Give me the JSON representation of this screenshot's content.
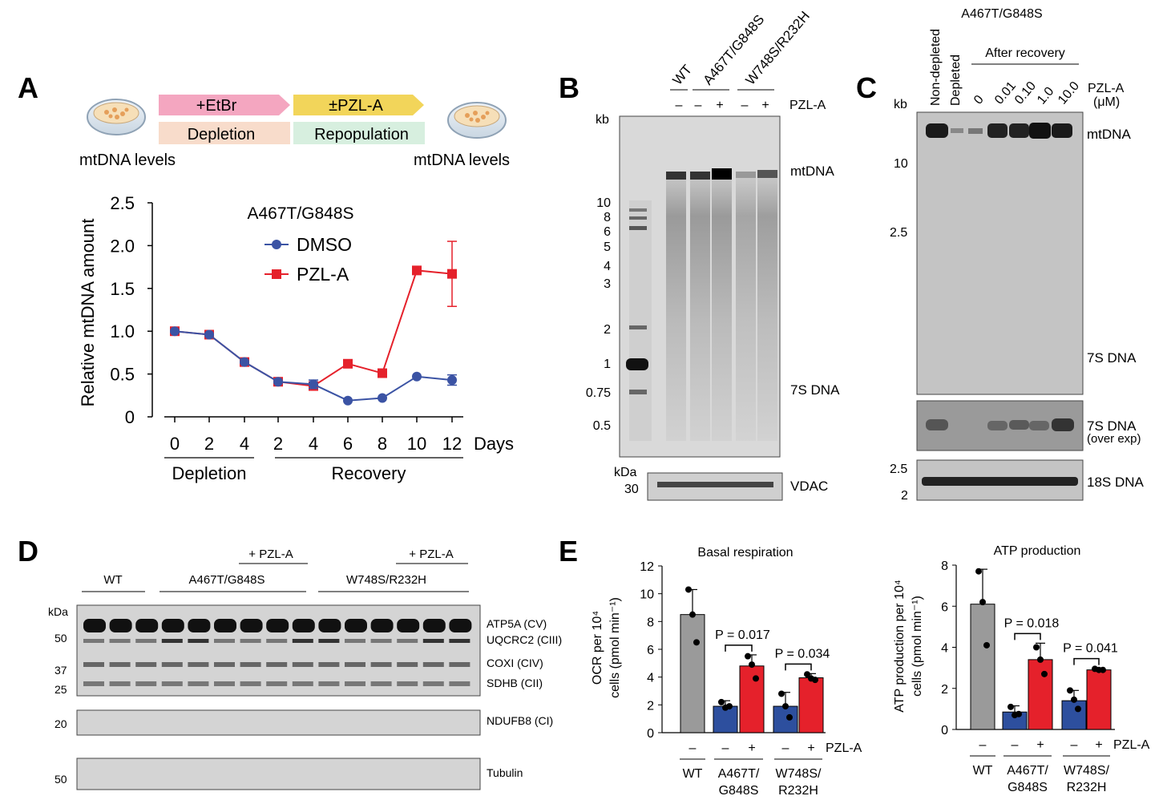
{
  "panels": {
    "A": {
      "letter": "A",
      "schematic": {
        "etbr": "+EtBr",
        "pzla": "±PZL-A",
        "depletion": "Depletion",
        "repopulation": "Repopulation",
        "mtdna_left": "mtDNA levels",
        "mtdna_right": "mtDNA levels",
        "colors": {
          "etbr_arrow": "#f4a6c0",
          "pzla_arrow": "#f2d55a",
          "depletion_box": "#f8dccb",
          "repop_box": "#d7efdf"
        }
      },
      "chart_title": "A467T/G848S",
      "ylabel": "Relative mtDNA amount",
      "xunit": "Days",
      "yticks": [
        "0",
        "0.5",
        "1.0",
        "1.5",
        "2.0",
        "2.5"
      ],
      "xticks": [
        "0",
        "2",
        "4",
        "2",
        "4",
        "6",
        "8",
        "10",
        "12"
      ],
      "group_labels": [
        "Depletion",
        "Recovery"
      ]
    },
    "B": {
      "letter": "B",
      "lanes": [
        "WT",
        "A467T/G848S",
        "W748S/R232H"
      ],
      "treatment_row": [
        "–",
        "–",
        "+",
        "–",
        "+"
      ],
      "treatment_label": "PZL-A",
      "kb_label": "kb",
      "ladder": [
        "10",
        "8",
        "6",
        "5",
        "4",
        "3",
        "2",
        "1",
        "0.75",
        "0.5"
      ],
      "bands": [
        "mtDNA",
        "7S DNA"
      ],
      "kda_label": "kDa",
      "kda_value": "30",
      "loading": "VDAC"
    },
    "C": {
      "letter": "C",
      "header": "A467T/G848S",
      "lanes": [
        "Non-depleted",
        "Depleted"
      ],
      "after_recovery": "After recovery",
      "doses": [
        "0",
        "0.01",
        "0.10",
        "1.0",
        "10.0"
      ],
      "dose_label": "PZL-A",
      "dose_unit": "(μM)",
      "kb_label": "kb",
      "ladder": [
        "10",
        "2.5"
      ],
      "bands": [
        "mtDNA",
        "7S DNA"
      ],
      "overexp_1": "7S DNA",
      "overexp_2": "(over exp)",
      "lower_ladder": [
        "2.5",
        "2"
      ],
      "loading": "18S DNA"
    },
    "D": {
      "letter": "D",
      "groups": [
        "WT",
        "A467T/G848S",
        "W748S/R232H"
      ],
      "pzl_labels": [
        "+ PZL-A",
        "+ PZL-A"
      ],
      "kda_label": "kDa",
      "markers": [
        "50",
        "37",
        "25",
        "20",
        "50"
      ],
      "proteins": [
        "ATP5A (CV)",
        "UQCRC2 (CIII)",
        "COXI (CIV)",
        "SDHB (CII)",
        "NDUFB8 (CI)",
        "Tubulin"
      ]
    },
    "E": {
      "letter": "E",
      "treatment_signs": [
        "–",
        "–",
        "+",
        "–",
        "+"
      ],
      "treatment_label": "PZL-A",
      "group_labels": [
        [
          "WT"
        ],
        [
          "A467T/",
          "G848S"
        ],
        [
          "W748S/",
          "R232H"
        ]
      ],
      "bar_colors": {
        "WT": "#9a9a9a",
        "minus": "#2d4f9e",
        "plus": "#e5212b"
      },
      "left_ylabel_1": "OCR per 10⁴",
      "left_ylabel_2": "cells (pmol min⁻¹)",
      "right_ylabel_1": "ATP production per 10⁴",
      "right_ylabel_2": "cells (pmol min⁻¹)"
    }
  },
  "chart_data": [
    {
      "type": "line",
      "title": "A467T/G848S",
      "ylabel": "Relative mtDNA amount",
      "xlabel": "Days",
      "x": [
        "0",
        "2",
        "4",
        "2",
        "4",
        "6",
        "8",
        "10",
        "12"
      ],
      "ylim": [
        0,
        2.5
      ],
      "series": [
        {
          "name": "DMSO",
          "color": "#3b53a4",
          "marker": "circle",
          "values": [
            1.0,
            0.96,
            0.64,
            0.41,
            0.38,
            0.19,
            0.22,
            0.47,
            0.43
          ],
          "errors": [
            0.02,
            0.02,
            0.03,
            0.03,
            0.05,
            0.02,
            0.02,
            0.03,
            0.06
          ]
        },
        {
          "name": "PZL-A",
          "color": "#e5212b",
          "marker": "square",
          "values": [
            1.0,
            0.96,
            0.64,
            0.41,
            0.36,
            0.62,
            0.51,
            1.71,
            1.67
          ],
          "errors": [
            0.02,
            0.02,
            0.03,
            0.03,
            0.03,
            0.03,
            0.03,
            0.03,
            0.38
          ]
        }
      ]
    },
    {
      "type": "bar",
      "title": "Basal respiration",
      "ylim": [
        0,
        12
      ],
      "yticks": [
        "0",
        "2",
        "4",
        "6",
        "8",
        "10",
        "12"
      ],
      "values": [
        8.5,
        1.9,
        4.8,
        1.9,
        3.95
      ],
      "errors": [
        1.8,
        0.4,
        0.8,
        1.0,
        0.3
      ],
      "points": [
        [
          10.3,
          8.5,
          6.5
        ],
        [
          2.2,
          1.8,
          1.9
        ],
        [
          5.5,
          4.9,
          3.9
        ],
        [
          2.8,
          1.9,
          1.1
        ],
        [
          4.2,
          3.9,
          3.8
        ]
      ],
      "annotations": [
        "P = 0.017",
        "P = 0.034"
      ]
    },
    {
      "type": "bar",
      "title": "ATP production",
      "ylim": [
        0,
        8
      ],
      "yticks": [
        "0",
        "2",
        "4",
        "6",
        "8"
      ],
      "values": [
        6.1,
        0.85,
        3.4,
        1.4,
        2.9
      ],
      "errors": [
        1.7,
        0.3,
        0.8,
        0.5,
        0.08
      ],
      "points": [
        [
          7.7,
          6.2,
          4.1
        ],
        [
          1.1,
          0.7,
          0.75
        ],
        [
          4.0,
          3.4,
          2.7
        ],
        [
          1.9,
          1.45,
          1.0
        ],
        [
          2.95,
          2.9,
          2.9
        ]
      ],
      "annotations": [
        "P = 0.018",
        "P = 0.041"
      ]
    }
  ]
}
